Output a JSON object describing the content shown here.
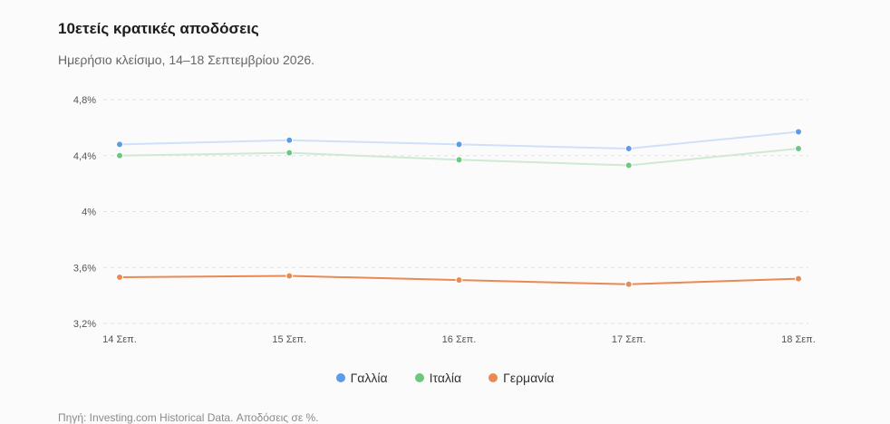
{
  "header": {
    "title": "10ετείς κρατικές αποδόσεις",
    "subtitle": "Ημερήσιο κλείσιμο, 14–18 Σεπτεμβρίου 2026."
  },
  "footer": {
    "source": "Πηγή: Investing.com Historical Data. Αποδόσεις σε %."
  },
  "chart_data": {
    "type": "line",
    "title": "10ετείς κρατικές αποδόσεις",
    "subtitle": "Ημερήσιο κλείσιμο, 14–18 Σεπτεμβρίου 2026.",
    "categories": [
      "14 Σεπ.",
      "15 Σεπ.",
      "16 Σεπ.",
      "17 Σεπ.",
      "18 Σεπ."
    ],
    "y_ticks": [
      3.2,
      3.6,
      4.0,
      4.4,
      4.8
    ],
    "y_tick_labels": [
      "3,2%",
      "3,6%",
      "4%",
      "4,4%",
      "4,8%"
    ],
    "ylim": [
      3.2,
      4.8
    ],
    "grid": true,
    "legend_position": "bottom",
    "series": [
      {
        "name": "Γαλλία",
        "values": [
          4.48,
          4.51,
          4.48,
          4.45,
          4.57
        ],
        "color": "#5b9bec",
        "line_color": "#cfe0f7"
      },
      {
        "name": "Ιταλία",
        "values": [
          4.4,
          4.42,
          4.37,
          4.33,
          4.45
        ],
        "color": "#6dc77f",
        "line_color": "#cfe9d3"
      },
      {
        "name": "Γερμανία",
        "values": [
          3.53,
          3.54,
          3.51,
          3.48,
          3.52
        ],
        "color": "#e98a55",
        "line_color": "#e98a55"
      }
    ]
  }
}
